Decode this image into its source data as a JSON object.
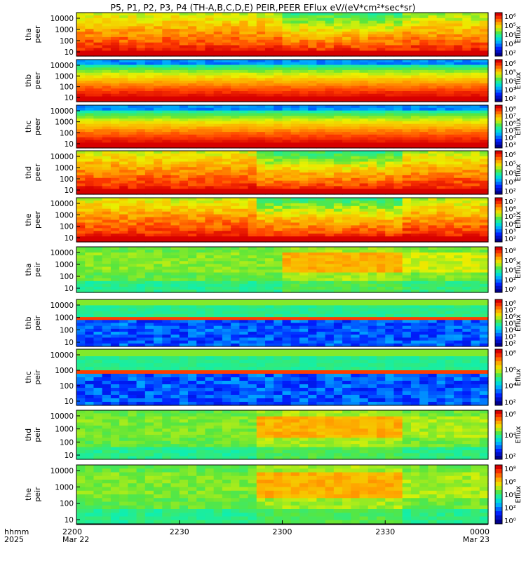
{
  "title": "P5, P1, P2, P3, P4 (TH-A,B,C,D,E) PEIR,PEER EFlux eV/(eV*cm²*sec*sr)",
  "chart_data": {
    "type": "heatmap",
    "description": "Stacked energy-time spectrograms (energy flux) for THEMIS probes A-E; electrons (peer) then ions (peir)",
    "x_axis": {
      "row_labels": [
        "hhmm",
        "2025"
      ],
      "ticks": [
        {
          "time": "2200",
          "date": "Mar 22"
        },
        {
          "time": "2230",
          "date": ""
        },
        {
          "time": "2300",
          "date": ""
        },
        {
          "time": "2330",
          "date": ""
        },
        {
          "time": "0000",
          "date": "Mar 23"
        }
      ]
    },
    "y_ticks": [
      "10000",
      "1000",
      "100",
      "10"
    ],
    "y_scale": "log",
    "colorbar_label": "Eflux",
    "colormap": "rainbow (blue-low, red-high)",
    "panels": [
      {
        "probe": "tha",
        "species": "peer",
        "cb_ticks": [
          "10⁶",
          "10⁵",
          "10⁴",
          "10³",
          "10²"
        ],
        "style": "active",
        "profile": "A"
      },
      {
        "probe": "thb",
        "species": "peer",
        "cb_ticks": [
          "10⁶",
          "10⁵",
          "10⁴",
          "10³",
          "10²"
        ],
        "style": "banded",
        "profile": "flat"
      },
      {
        "probe": "thc",
        "species": "peer",
        "cb_ticks": [
          "10⁸",
          "10⁷",
          "10⁶",
          "10⁵",
          "10⁴",
          "10³"
        ],
        "style": "banded",
        "profile": "flat"
      },
      {
        "probe": "thd",
        "species": "peer",
        "cb_ticks": [
          "10⁶",
          "10⁵",
          "10⁴",
          "10³",
          "10²"
        ],
        "style": "active",
        "profile": "B"
      },
      {
        "probe": "the",
        "species": "peer",
        "cb_ticks": [
          "10⁷",
          "10⁶",
          "10⁵",
          "10⁴",
          "10³",
          "10²"
        ],
        "style": "active",
        "profile": "B"
      },
      {
        "probe": "tha",
        "species": "peir",
        "cb_ticks": [
          "10⁸",
          "10⁶",
          "10⁴",
          "10²",
          "10⁰"
        ],
        "style": "ion",
        "profile": "A"
      },
      {
        "probe": "thb",
        "species": "peir",
        "cb_ticks": [
          "10⁸",
          "10⁷",
          "10⁶",
          "10⁵",
          "10⁴",
          "10³",
          "10²"
        ],
        "style": "ionquiet",
        "profile": "flat"
      },
      {
        "probe": "thc",
        "species": "peir",
        "cb_ticks": [
          "10⁸",
          "10⁶",
          "10⁴",
          "10²"
        ],
        "style": "ionquiet",
        "profile": "flat"
      },
      {
        "probe": "thd",
        "species": "peir",
        "cb_ticks": [
          "10⁶",
          "10⁴",
          "10²"
        ],
        "style": "ion",
        "profile": "B"
      },
      {
        "probe": "the",
        "species": "peir",
        "cb_ticks": [
          "10⁸",
          "10⁶",
          "10⁴",
          "10²",
          "10⁰"
        ],
        "style": "ion",
        "profile": "B"
      }
    ]
  }
}
